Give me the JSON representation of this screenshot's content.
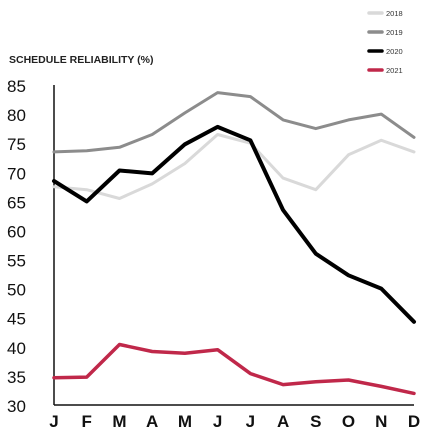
{
  "chart_data": {
    "type": "line",
    "title": "SCHEDULE RELIABILITY (%)",
    "xlabel": "",
    "ylabel": "",
    "categories": [
      "J",
      "F",
      "M",
      "A",
      "M",
      "J",
      "J",
      "A",
      "S",
      "O",
      "N",
      "D"
    ],
    "ylim": [
      30,
      85
    ],
    "yticks": [
      85,
      80,
      75,
      70,
      65,
      60,
      55,
      50,
      45,
      40,
      35,
      30
    ],
    "grid": false,
    "legend_position": "top-right",
    "series": [
      {
        "name": "2018",
        "color": "#d9d9d9",
        "values": [
          67.5,
          67,
          65.5,
          68,
          71.5,
          76.5,
          75,
          69,
          67,
          73,
          75.5,
          73.5
        ]
      },
      {
        "name": "2019",
        "color": "#8c8c8c",
        "values": [
          73.5,
          73.7,
          74.3,
          76.5,
          80.2,
          83.7,
          83,
          79,
          77.5,
          79,
          80,
          76
        ]
      },
      {
        "name": "2020",
        "color": "#000000",
        "values": [
          68.5,
          65,
          70.3,
          69.8,
          74.8,
          77.8,
          75.5,
          63.5,
          56,
          52.3,
          50,
          44.3
        ]
      },
      {
        "name": "2021",
        "color": "#c0284a",
        "values": [
          34.7,
          34.8,
          40.4,
          39.2,
          38.9,
          39.5,
          35.4,
          33.5,
          34,
          34.3,
          33.2,
          32
        ]
      }
    ]
  }
}
